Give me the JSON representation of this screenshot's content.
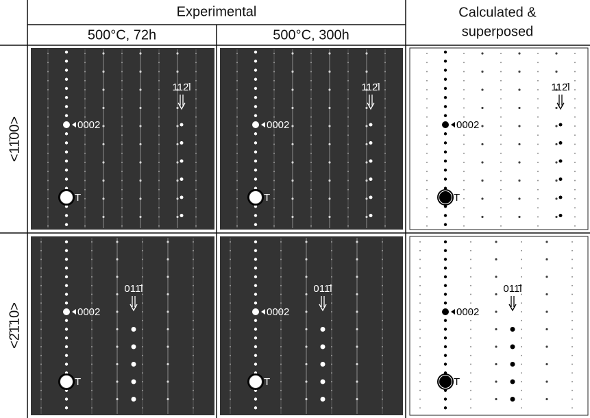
{
  "header": {
    "experimental": "Experimental",
    "calculated": [
      "Calculated &",
      "superposed"
    ],
    "conditions": [
      "500°C, 72h",
      "500°C, 300h"
    ]
  },
  "rows": [
    {
      "label": "<11̄00>",
      "spot_label": "0002",
      "origin_label": "T",
      "arrow_label": "112̄l"
    },
    {
      "label": "<2̄1̄10>",
      "spot_label": "0002",
      "origin_label": "T",
      "arrow_label": "011̄l"
    }
  ]
}
